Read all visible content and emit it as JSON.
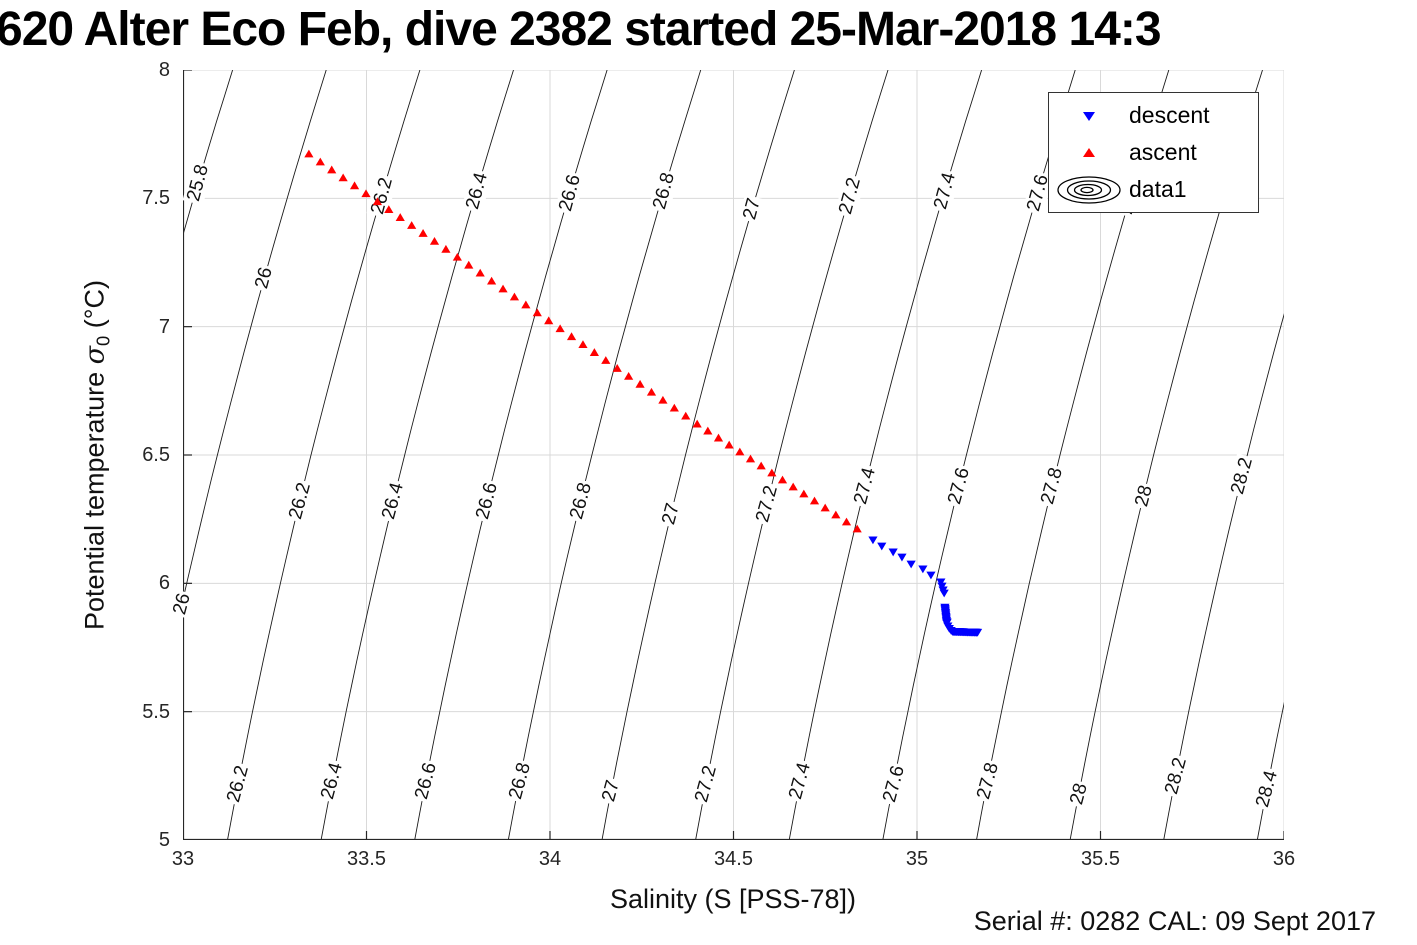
{
  "chart_data": {
    "type": "scatter",
    "title": "620 Alter Eco Feb, dive 2382 started 25-Mar-2018 14:3",
    "xlabel": "Salinity (S [PSS-78])",
    "ylabel": {
      "prefix": "Potential temperature ",
      "sigma": "σ",
      "sub": "0",
      "suffix": " (°C)"
    },
    "annotation": "Serial #: 0282  CAL: 09 Sept 2017",
    "xlim": [
      33,
      36
    ],
    "ylim": [
      5,
      8
    ],
    "xticks": [
      33,
      33.5,
      34,
      34.5,
      35,
      35.5,
      36
    ],
    "xtick_labels": [
      "33",
      "33.5",
      "34",
      "34.5",
      "35",
      "35.5",
      "36"
    ],
    "yticks": [
      5,
      5.5,
      6,
      6.5,
      7,
      7.5,
      8
    ],
    "ytick_labels": [
      "5",
      "5.5",
      "6",
      "6.5",
      "7",
      "7.5",
      "8"
    ],
    "grid": true,
    "colors": {
      "ascent": "#ff0000",
      "descent": "#0000ff",
      "contour": "#1a1a1a",
      "grid": "#d9d9d9",
      "axis": "#262626",
      "clabel": "#111111"
    },
    "legend": [
      {
        "label": "descent",
        "marker": "triangle-down",
        "color": "#0000ff"
      },
      {
        "label": "ascent",
        "marker": "triangle-up",
        "color": "#ff0000"
      },
      {
        "label": "data1",
        "marker": "contour-ellipses",
        "color": "#000000"
      }
    ],
    "series": {
      "ascent": {
        "marker": "triangle-up",
        "polyline": [
          [
            33.343,
            7.673
          ],
          [
            34.401,
            6.621
          ],
          [
            34.837,
            6.212
          ]
        ],
        "counts": [
          34,
          15
        ]
      },
      "descent": {
        "marker": "triangle-down",
        "segments": [
          {
            "pts": [
              [
                34.88,
                6.169
              ],
              [
                34.904,
                6.145
              ],
              [
                34.935,
                6.122
              ],
              [
                34.959,
                6.102
              ],
              [
                34.984,
                6.075
              ],
              [
                35.016,
                6.056
              ],
              [
                35.038,
                6.032
              ],
              [
                35.065,
                6.005
              ],
              [
                35.068,
                5.989
              ],
              [
                35.071,
                5.974
              ],
              [
                35.074,
                5.962
              ]
            ]
          },
          {
            "from": [
              35.076,
              5.907
            ],
            "to": [
              35.081,
              5.845
            ],
            "n": 12
          },
          {
            "pts": [
              [
                35.082,
                5.849
              ],
              [
                35.084,
                5.834
              ],
              [
                35.088,
                5.824
              ],
              [
                35.093,
                5.816
              ]
            ]
          },
          {
            "from": [
              35.097,
              5.812
            ],
            "to": [
              35.165,
              5.809
            ],
            "n": 36
          }
        ]
      }
    },
    "isopycnals": {
      "values": [
        25.8,
        26,
        26.2,
        26.4,
        26.6,
        26.8,
        27,
        27.2,
        27.4,
        27.6,
        27.8,
        28,
        28.2,
        28.4
      ],
      "eos": {
        "sigma_ref": 27.56,
        "s_ref": 35,
        "t_ref": 6,
        "dsigma_ds": 0.784,
        "b0": 0.125,
        "b1": 0.012
      },
      "clabels": [
        {
          "v": 25.8,
          "t": [
            7.56
          ]
        },
        {
          "v": 26,
          "t": [
            7.19,
            5.92
          ]
        },
        {
          "v": 26.2,
          "t": [
            7.51,
            6.32,
            5.22
          ]
        },
        {
          "v": 26.4,
          "t": [
            7.53,
            6.32,
            5.23
          ]
        },
        {
          "v": 26.6,
          "t": [
            7.52,
            6.32,
            5.23
          ]
        },
        {
          "v": 26.8,
          "t": [
            7.53,
            6.32,
            5.23
          ]
        },
        {
          "v": 27,
          "t": [
            7.46,
            6.27,
            5.19
          ]
        },
        {
          "v": 27.2,
          "t": [
            7.51,
            6.31,
            5.22
          ]
        },
        {
          "v": 27.4,
          "t": [
            7.53,
            6.38,
            5.23
          ]
        },
        {
          "v": 27.6,
          "t": [
            7.52,
            6.38,
            5.22
          ]
        },
        {
          "v": 27.8,
          "t": [
            7.51,
            6.38,
            5.23
          ]
        },
        {
          "v": 28,
          "t": [
            7.51,
            6.34,
            5.18
          ]
        },
        {
          "v": 28.2,
          "t": [
            6.42,
            5.25
          ]
        },
        {
          "v": 28.4,
          "t": [
            5.2
          ]
        }
      ]
    }
  }
}
